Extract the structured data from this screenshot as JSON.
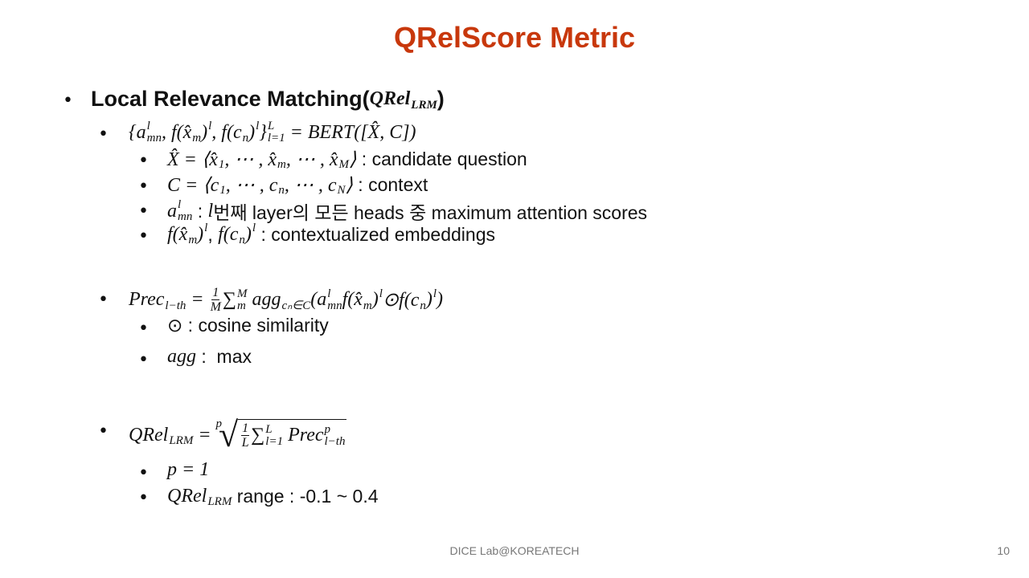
{
  "title": "QRelScore Metric",
  "heading": [
    "Local Relevance Matching(",
    {
      "m": "QRel",
      "sub": "LRM"
    },
    ")"
  ],
  "groups": [
    {
      "main": [
        {
          "m": "{a",
          "sup": "l",
          "sub": "mn"
        },
        {
          "m": ", f(x̂",
          "sub": "m"
        },
        {
          "m": ")",
          "sup": "l"
        },
        {
          "m": ", f(c",
          "sub": "n"
        },
        {
          "m": ")",
          "sup": "l"
        },
        {
          "m": "}",
          "sup": "L",
          "sub": "l=1"
        },
        {
          "m": " = BERT([X̂, C])"
        }
      ],
      "items": [
        [
          {
            "m": "X̂ = ⟨x̂",
            "sub": "1"
          },
          {
            "m": ", ⋯ , x̂",
            "sub": "m"
          },
          {
            "m": ", ⋯ , x̂",
            "sub": "M"
          },
          {
            "m": "⟩"
          },
          " : candidate question"
        ],
        [
          {
            "m": "C = ⟨c",
            "sub": "1"
          },
          {
            "m": ", ⋯ , c",
            "sub": "n"
          },
          {
            "m": ", ⋯ , c",
            "sub": "N"
          },
          {
            "m": "⟩"
          },
          " : context"
        ],
        [
          {
            "m": "a",
            "sup": "l",
            "sub": "mn"
          },
          " : ",
          {
            "m": "l"
          },
          "번째 layer의 모든 heads 중 maximum attention scores"
        ],
        [
          {
            "m": "f(x̂",
            "sub": "m"
          },
          {
            "m": ")",
            "sup": "l"
          },
          ", ",
          {
            "m": "f(c",
            "sub": "n"
          },
          {
            "m": ")",
            "sup": "l"
          },
          " : contextualized embeddings"
        ]
      ]
    },
    {
      "main": [
        {
          "m": "Prec",
          "sub": "l−th"
        },
        {
          "m": " = "
        },
        {
          "num": "1",
          "den": "M"
        },
        {
          "m": "∑",
          "sup": "M",
          "sub": "m"
        },
        {
          "m": " agg",
          "sub": "cₙ∈C"
        },
        {
          "m": "(a",
          "sup": "l",
          "sub": "mn"
        },
        {
          "m": "f(x̂",
          "sub": "m"
        },
        {
          "m": ")",
          "sup": "l"
        },
        {
          "m": "⊙f(c",
          "sub": "n"
        },
        {
          "m": ")",
          "sup": "l"
        },
        {
          "m": ")"
        }
      ],
      "items": [
        [
          "⊙ : cosine similarity"
        ],
        [
          {
            "m": "agg"
          },
          " :  max"
        ]
      ]
    },
    {
      "main": [
        {
          "m": "QRel",
          "sub": "LRM"
        },
        {
          "m": " = "
        },
        {
          "root": "p",
          "body": [
            {
              "num": "1",
              "den": "L"
            },
            {
              "m": "∑",
              "sup": "L",
              "sub": "l=1"
            },
            {
              "m": " Prec",
              "sup": "p",
              "sub": "l−th"
            }
          ]
        }
      ],
      "items": [
        [
          {
            "m": "p = 1"
          }
        ],
        [
          {
            "m": "QRel",
            "sub": "LRM"
          },
          " range : -0.1 ~ 0.4"
        ]
      ]
    }
  ],
  "footer": "DICE Lab@KOREATECH",
  "page_number": "10"
}
